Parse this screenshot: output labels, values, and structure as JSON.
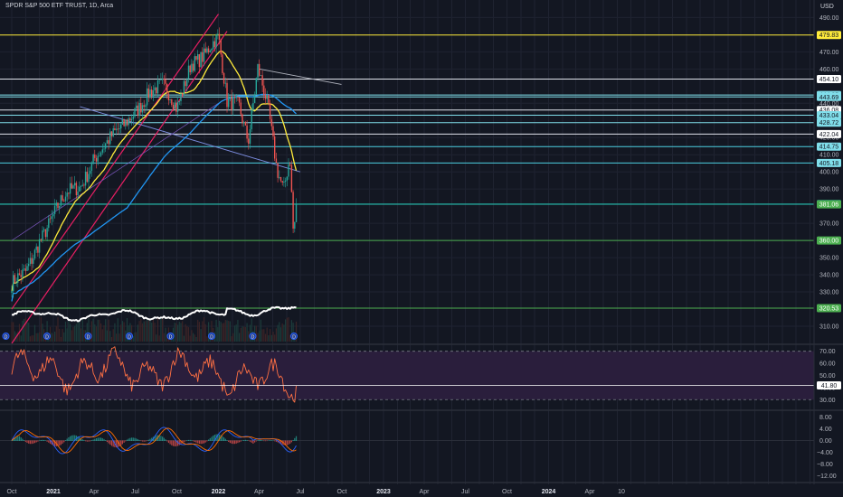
{
  "header": {
    "symbol_title": "SPDR S&P 500 ETF TRUST, 1D, Arca",
    "currency": "USD"
  },
  "colors": {
    "background": "#131722",
    "grid": "#1f2331",
    "axis_text": "#b2b5be",
    "candle_up": "#26a69a",
    "candle_down": "#ef5350",
    "channel": "#e91e63",
    "ma_yellow": "#ffeb3b",
    "ma_blue": "#2196f3",
    "volume_ma": "#ffffff",
    "rsi_line": "#ff7043",
    "rsi_band": "#2a1e3c",
    "macd_line": "#2962ff",
    "signal_line": "#ff6d00"
  },
  "chart_data": [
    {
      "type": "candlestick",
      "title": "SPDR S&P 500 ETF TRUST, 1D, Arca",
      "ylabel": "USD",
      "ylim": [
        300,
        496
      ],
      "y_ticks": [
        490.0,
        470.0,
        460.0,
        440.0,
        420.0,
        410.0,
        400.0,
        390.0,
        370.0,
        360.0,
        350.0,
        340.0,
        330.0,
        310.0
      ],
      "x_ticks": [
        "Oct",
        "2021",
        "Apr",
        "Jul",
        "Oct",
        "2022",
        "Apr",
        "Jul",
        "Oct",
        "2023",
        "Apr",
        "Jul",
        "Oct",
        "2024",
        "Apr",
        "10"
      ],
      "price_path": [
        [
          "2020-10-01",
          332
        ],
        [
          "2020-11-01",
          342
        ],
        [
          "2020-12-01",
          362
        ],
        [
          "2021-01-01",
          374
        ],
        [
          "2021-02-01",
          386
        ],
        [
          "2021-03-01",
          392
        ],
        [
          "2021-04-01",
          410
        ],
        [
          "2021-05-01",
          416
        ],
        [
          "2021-06-01",
          424
        ],
        [
          "2021-07-01",
          437
        ],
        [
          "2021-08-01",
          448
        ],
        [
          "2021-09-01",
          448
        ],
        [
          "2021-10-01",
          436
        ],
        [
          "2021-11-01",
          466
        ],
        [
          "2021-12-01",
          468
        ],
        [
          "2022-01-01",
          476
        ],
        [
          "2022-01-20",
          440
        ],
        [
          "2022-02-15",
          442
        ],
        [
          "2022-03-08",
          420
        ],
        [
          "2022-03-29",
          460
        ],
        [
          "2022-04-20",
          436
        ],
        [
          "2022-05-10",
          400
        ],
        [
          "2022-05-25",
          390
        ],
        [
          "2022-06-08",
          412
        ],
        [
          "2022-06-16",
          365
        ],
        [
          "2022-06-24",
          390
        ]
      ],
      "horizontal_levels": [
        {
          "value": 479.83,
          "label": "479.83",
          "color": "#ffeb3b",
          "label_bg": "#ffeb3b",
          "label_fg": "#131722"
        },
        {
          "value": 454.1,
          "label": "454.10",
          "color": "#e0e3eb",
          "label_bg": "#ffffff",
          "label_fg": "#131722"
        },
        {
          "value": 444.85,
          "label": "444.85",
          "color": "#80deea",
          "label_bg": "#80deea",
          "label_fg": "#131722"
        },
        {
          "value": 443.69,
          "label": "443.69",
          "color": "#80deea",
          "label_bg": "#80deea",
          "label_fg": "#131722"
        },
        {
          "value": 436.08,
          "label": "436.08",
          "color": "#e0e3eb",
          "label_bg": "#ffffff",
          "label_fg": "#131722"
        },
        {
          "value": 433.04,
          "label": "433.04",
          "color": "#80deea",
          "label_bg": "#80deea",
          "label_fg": "#131722"
        },
        {
          "value": 428.72,
          "label": "428.72",
          "color": "#80deea",
          "label_bg": "#80deea",
          "label_fg": "#131722"
        },
        {
          "value": 422.04,
          "label": "422.04",
          "color": "#e0e3eb",
          "label_bg": "#ffffff",
          "label_fg": "#131722"
        },
        {
          "value": 414.75,
          "label": "414.75",
          "color": "#4dd0e1",
          "label_bg": "#80deea",
          "label_fg": "#131722"
        },
        {
          "value": 405.18,
          "label": "405.18",
          "color": "#4dd0e1",
          "label_bg": "#80deea",
          "label_fg": "#131722"
        },
        {
          "value": 381.24,
          "label": "381.24",
          "color": "#26a69a",
          "label_bg": "#26a69a",
          "label_fg": "#ffffff"
        },
        {
          "value": 381.06,
          "label": "381.06",
          "color": "#26a69a",
          "label_bg": "#4caf50",
          "label_fg": "#ffffff"
        },
        {
          "value": 360.0,
          "label": "360.00",
          "color": "#4caf50",
          "label_bg": "#4caf50",
          "label_fg": "#ffffff"
        },
        {
          "value": 320.53,
          "label": "320.53",
          "color": "#4caf50",
          "label_bg": "#4caf50",
          "label_fg": "#ffffff"
        }
      ]
    },
    {
      "type": "line",
      "title": "",
      "ylim": [
        22,
        75
      ],
      "y_ticks": [
        70.0,
        60.0,
        50.0,
        40.0,
        30.0
      ],
      "upper_band": 70,
      "lower_band": 30,
      "level": {
        "value": 41.8,
        "label": "41.80"
      }
    },
    {
      "type": "line",
      "title": "",
      "ylim": [
        -14,
        10
      ],
      "y_ticks": [
        8.0,
        4.0,
        0.0,
        -4.0,
        -8.0,
        -12.0
      ]
    }
  ]
}
